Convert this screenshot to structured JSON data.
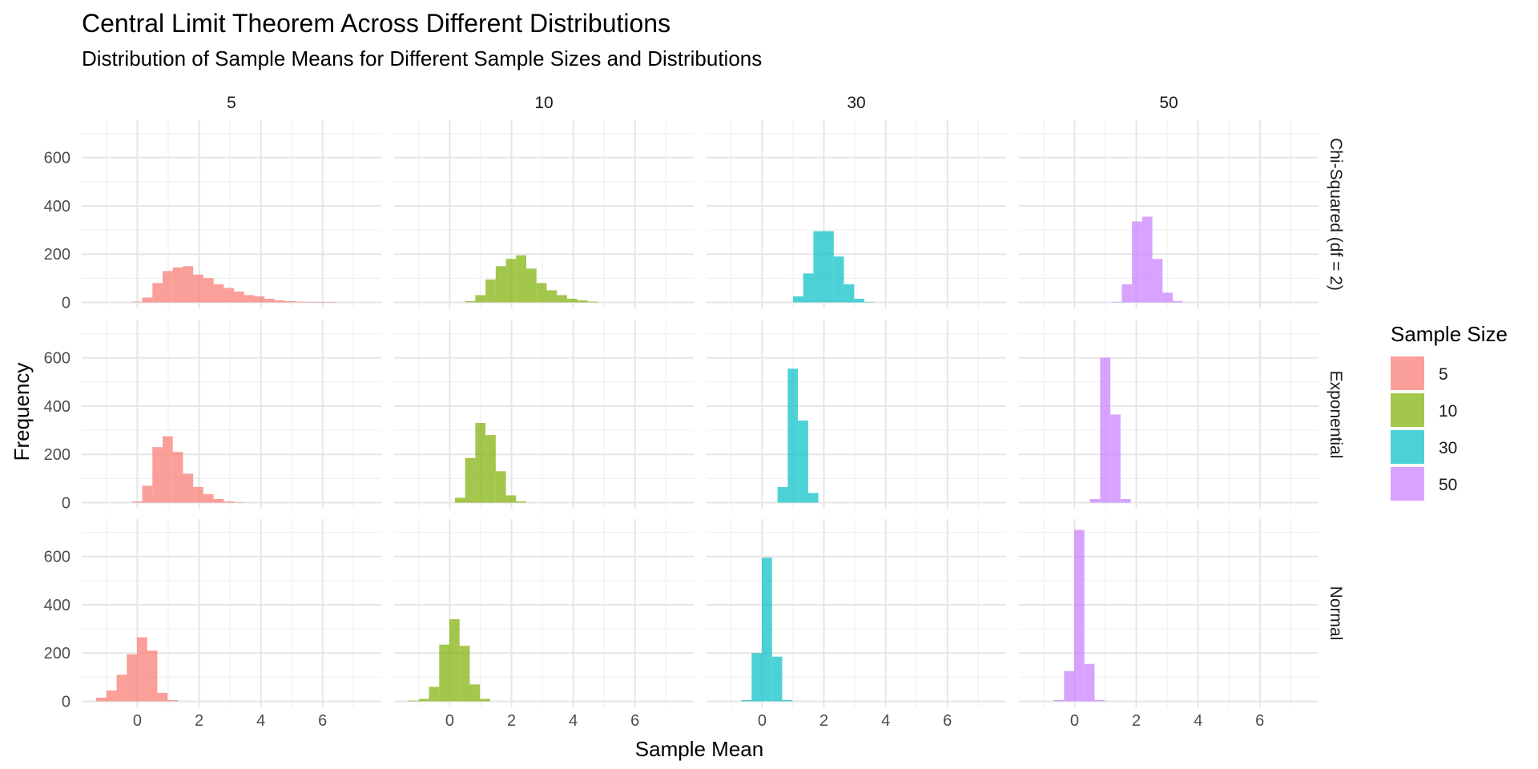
{
  "chart_data": {
    "type": "bar",
    "title": "Central Limit Theorem Across Different Distributions",
    "subtitle": "Distribution of Sample Means for Different Sample Sizes and Distributions",
    "xlabel": "Sample Mean",
    "ylabel": "Frequency",
    "xlim": [
      -1.8,
      7.9
    ],
    "ylim": [
      -25,
      755
    ],
    "x_ticks": [
      0,
      2,
      4,
      6
    ],
    "y_ticks": [
      0,
      200,
      400,
      600
    ],
    "grid": true,
    "legend_title": "Sample Size",
    "legend_position": "right",
    "legend": [
      {
        "label": "5",
        "color": "#F8766D"
      },
      {
        "label": "10",
        "color": "#7CAE00"
      },
      {
        "label": "30",
        "color": "#00BFC4"
      },
      {
        "label": "50",
        "color": "#C77CFF"
      }
    ],
    "columns": [
      "5",
      "10",
      "30",
      "50"
    ],
    "rows": [
      "Chi-Squared (df = 2)",
      "Exponential",
      "Normal"
    ],
    "bin_width": 0.33,
    "panels": [
      {
        "row": 0,
        "col": 0,
        "start": -0.17,
        "counts": [
          3,
          20,
          80,
          130,
          145,
          150,
          115,
          100,
          75,
          60,
          45,
          30,
          25,
          15,
          8,
          5,
          3,
          2,
          1,
          1
        ]
      },
      {
        "row": 0,
        "col": 1,
        "start": 0.5,
        "counts": [
          5,
          30,
          95,
          150,
          180,
          195,
          140,
          80,
          50,
          30,
          15,
          8,
          3
        ]
      },
      {
        "row": 0,
        "col": 2,
        "start": 1.0,
        "counts": [
          25,
          120,
          295,
          295,
          190,
          75,
          15,
          2
        ]
      },
      {
        "row": 0,
        "col": 3,
        "start": 1.2,
        "counts": [
          2,
          75,
          335,
          355,
          180,
          40,
          5
        ]
      },
      {
        "row": 1,
        "col": 0,
        "start": -0.17,
        "counts": [
          5,
          70,
          230,
          275,
          210,
          120,
          65,
          35,
          15,
          5,
          2
        ]
      },
      {
        "row": 1,
        "col": 1,
        "start": 0.17,
        "counts": [
          20,
          185,
          330,
          280,
          130,
          30,
          5
        ]
      },
      {
        "row": 1,
        "col": 2,
        "start": 0.5,
        "counts": [
          65,
          555,
          340,
          40
        ]
      },
      {
        "row": 1,
        "col": 3,
        "start": 0.5,
        "counts": [
          15,
          600,
          365,
          15
        ]
      },
      {
        "row": 2,
        "col": 0,
        "start": -1.33,
        "counts": [
          15,
          45,
          110,
          195,
          265,
          210,
          35,
          5
        ]
      },
      {
        "row": 2,
        "col": 1,
        "start": -1.33,
        "counts": [
          3,
          10,
          60,
          235,
          340,
          230,
          70,
          10
        ]
      },
      {
        "row": 2,
        "col": 2,
        "start": -0.67,
        "counts": [
          5,
          200,
          595,
          185,
          5
        ]
      },
      {
        "row": 2,
        "col": 3,
        "start": -0.67,
        "counts": [
          5,
          125,
          710,
          155,
          5
        ]
      }
    ]
  }
}
